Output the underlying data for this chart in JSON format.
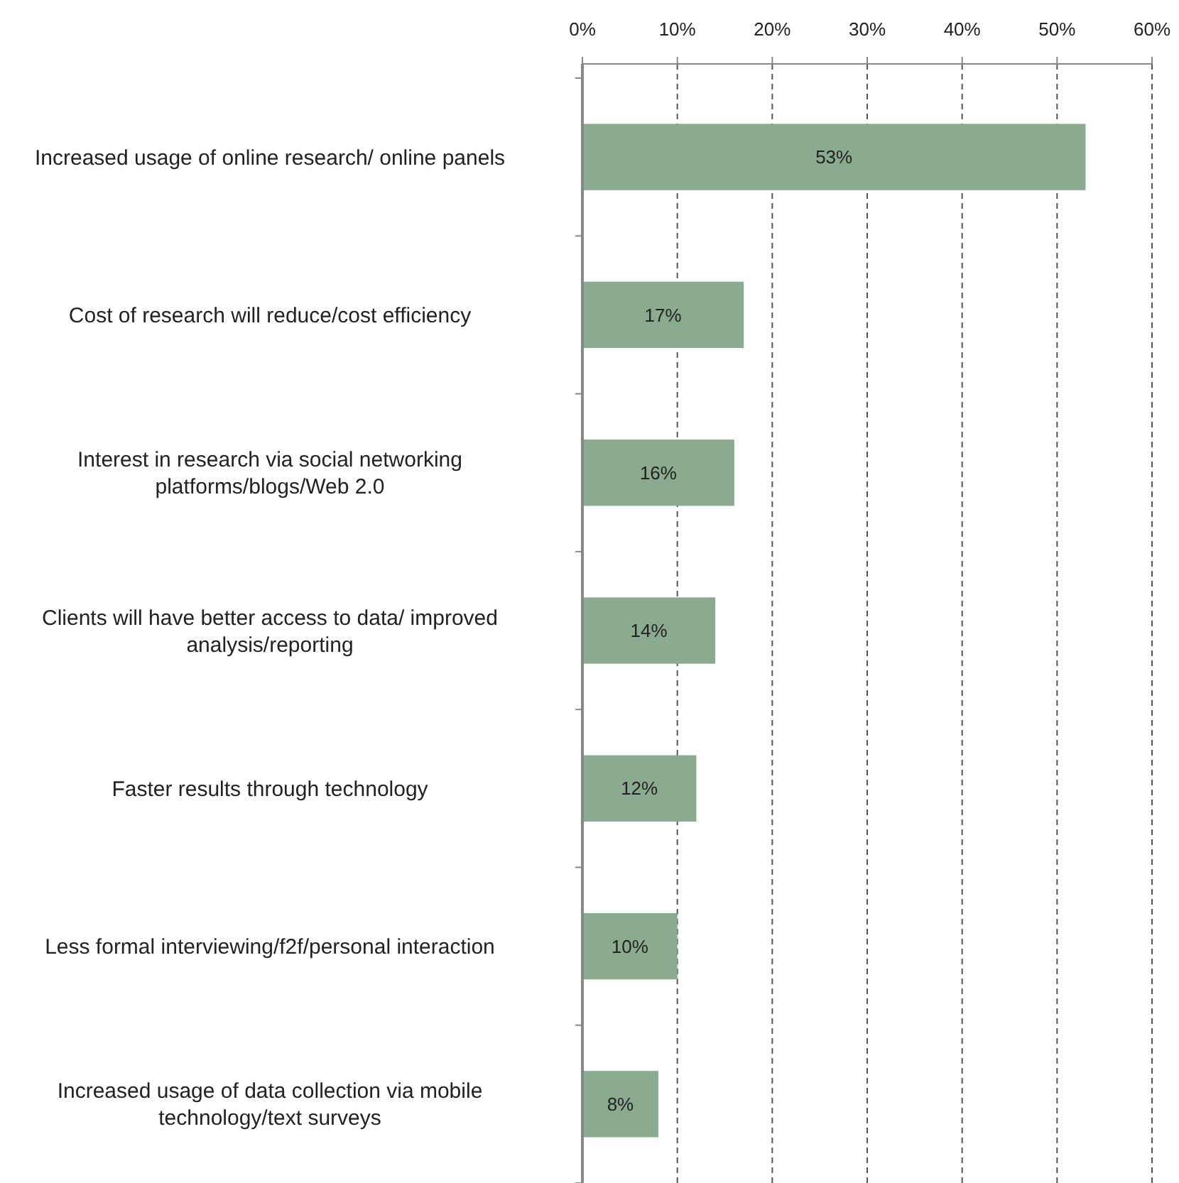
{
  "chart_data": {
    "type": "bar",
    "orientation": "horizontal",
    "categories": [
      "Increased usage of online research/ online panels",
      "Cost of research will reduce/cost efficiency",
      "Interest in research via social networking platforms/blogs/Web 2.0",
      "Clients will have better access to data/ improved analysis/reporting",
      "Faster results through technology",
      "Less formal interviewing/f2f/personal interaction",
      "Increased usage of data collection via mobile technology/text surveys"
    ],
    "values": [
      53,
      17,
      16,
      14,
      12,
      10,
      8
    ],
    "value_labels": [
      "53%",
      "17%",
      "16%",
      "14%",
      "12%",
      "10%",
      "8%"
    ],
    "color": "#8aab8f",
    "xlim": [
      0,
      60
    ],
    "xticks": [
      {
        "value": 0,
        "label": "0%"
      },
      {
        "value": 10,
        "label": "10%"
      },
      {
        "value": 20,
        "label": "20%"
      },
      {
        "value": 30,
        "label": "30%"
      },
      {
        "value": 40,
        "label": "40%"
      },
      {
        "value": 50,
        "label": "50%"
      },
      {
        "value": 60,
        "label": "60%"
      }
    ],
    "grid": "x"
  }
}
